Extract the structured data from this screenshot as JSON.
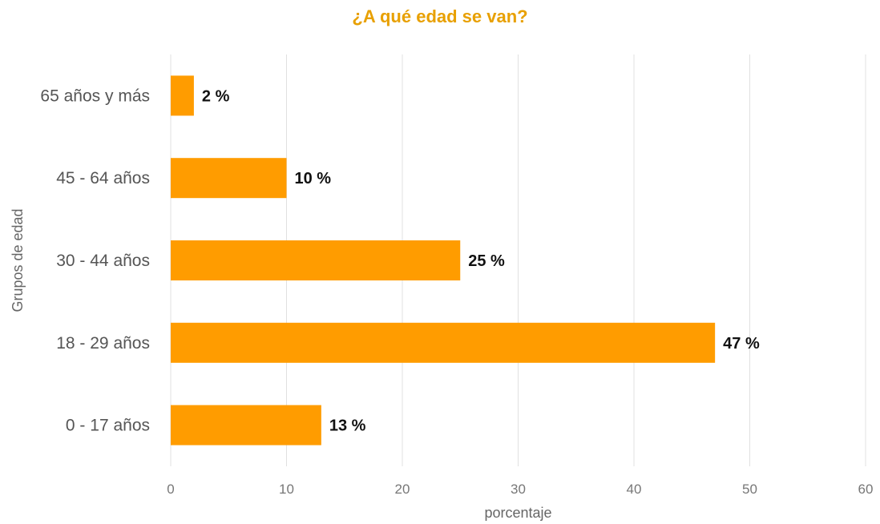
{
  "chart_data": {
    "type": "bar",
    "orientation": "horizontal",
    "title": "¿A qué edad se van?",
    "xlabel": "porcentaje",
    "ylabel": "Grupos de edad",
    "categories": [
      "65 años y más",
      "45 - 64 años",
      "30 - 44 años",
      "18 - 29 años",
      "0 - 17 años"
    ],
    "values": [
      2,
      10,
      25,
      47,
      13
    ],
    "data_labels": [
      "2 %",
      "10 %",
      "25 %",
      "47 %",
      "13 %"
    ],
    "xlim": [
      0,
      60
    ],
    "xticks": [
      0,
      10,
      20,
      30,
      40,
      50,
      60
    ],
    "grid": true,
    "legend": "none",
    "colors": {
      "bar": "#ff9c00",
      "title": "#e8a000",
      "grid": "#e0e0e0"
    }
  }
}
